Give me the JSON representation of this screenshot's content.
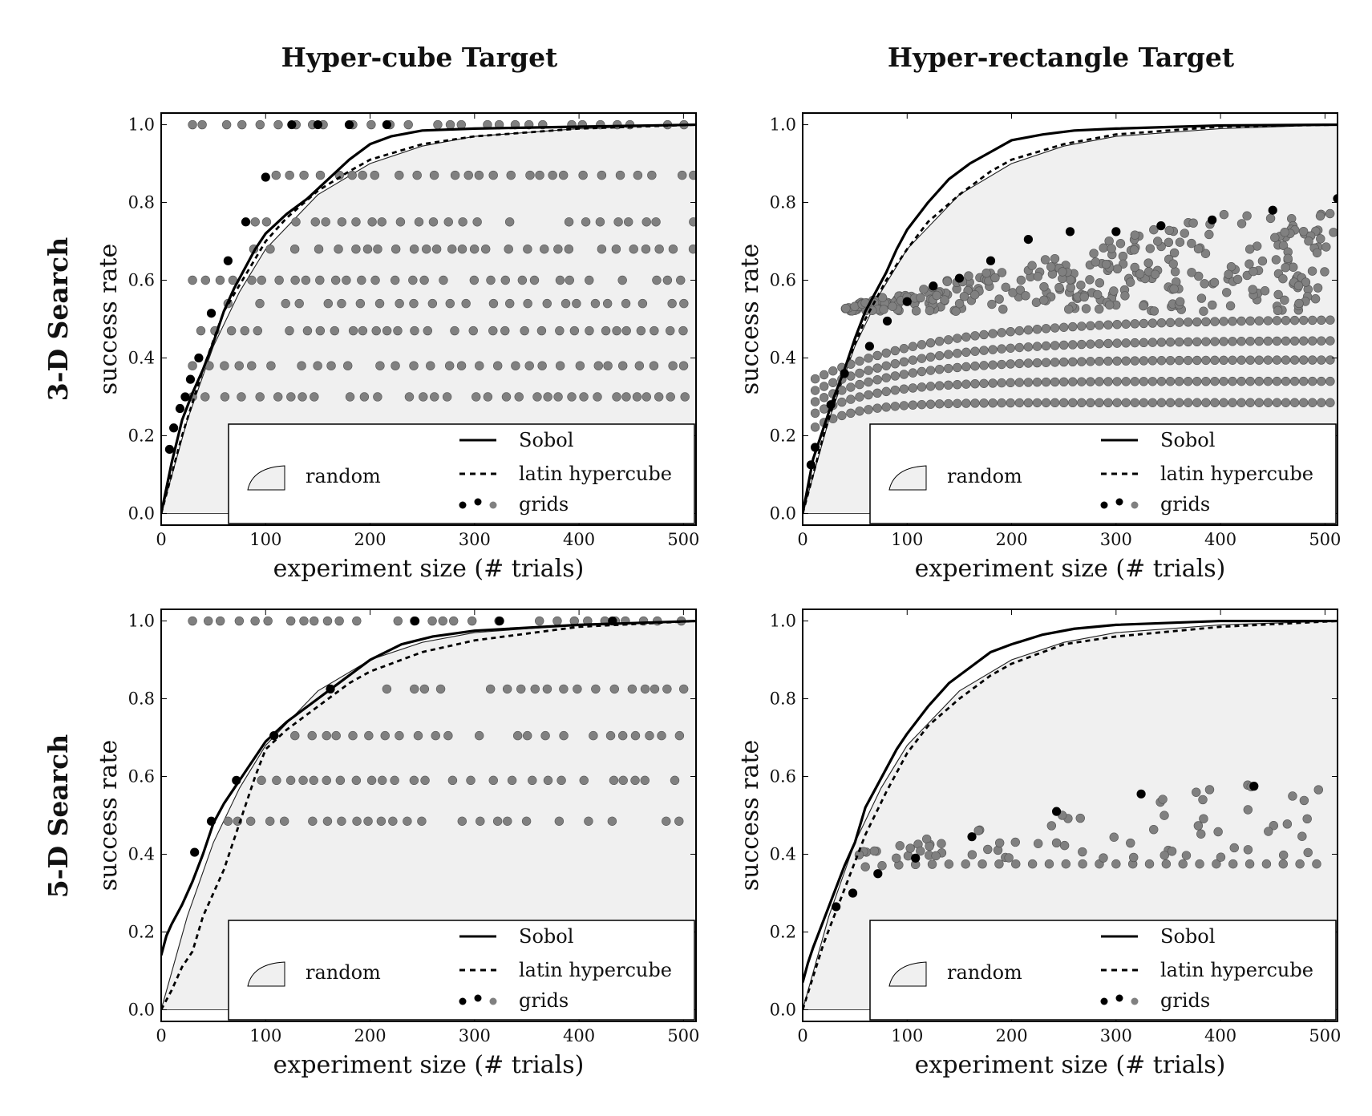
{
  "figure": {
    "col_titles": [
      "Hyper-cube Target",
      "Hyper-rectangle Target"
    ],
    "row_titles": [
      "3-D Search",
      "5-D Search"
    ]
  },
  "colors": {
    "random_fill": "#f0f0f0",
    "black_dot": "#000000",
    "gray_dot": "#808080",
    "line": "#000000"
  },
  "legend": {
    "random": "random",
    "sobol": "Sobol",
    "latin": "latin hypercube",
    "grids": "grids"
  },
  "chart_data": [
    {
      "type": "line",
      "panel": "3-D Search / Hyper-cube Target",
      "xlabel": "experiment size (# trials)",
      "ylabel": "success rate",
      "xlim": [
        0,
        512
      ],
      "ylim": [
        -0.03,
        1.03
      ],
      "xticks": [
        "0",
        "100",
        "200",
        "300",
        "400",
        "500"
      ],
      "yticks": [
        "0.0",
        "0.2",
        "0.4",
        "0.6",
        "0.8",
        "1.0"
      ],
      "series": [
        {
          "name": "random",
          "x": [
            0,
            25,
            50,
            75,
            100,
            150,
            200,
            250,
            300,
            400,
            512
          ],
          "values": [
            0,
            0.24,
            0.43,
            0.57,
            0.68,
            0.82,
            0.9,
            0.945,
            0.97,
            0.99,
            1.0
          ]
        },
        {
          "name": "Sobol",
          "x": [
            0,
            10,
            20,
            30,
            40,
            50,
            60,
            70,
            80,
            90,
            100,
            120,
            140,
            160,
            180,
            200,
            220,
            250,
            300,
            400,
            512
          ],
          "values": [
            0,
            0.13,
            0.24,
            0.31,
            0.37,
            0.44,
            0.52,
            0.58,
            0.63,
            0.68,
            0.72,
            0.77,
            0.81,
            0.86,
            0.91,
            0.95,
            0.97,
            0.985,
            0.99,
            0.995,
            1.0
          ]
        },
        {
          "name": "latin hypercube",
          "x": [
            0,
            20,
            40,
            60,
            80,
            100,
            120,
            150,
            180,
            200,
            250,
            300,
            400,
            512
          ],
          "values": [
            0,
            0.2,
            0.37,
            0.52,
            0.61,
            0.7,
            0.76,
            0.83,
            0.88,
            0.91,
            0.95,
            0.97,
            0.99,
            1.0
          ]
        }
      ],
      "grid_levels": [
        0.3,
        0.38,
        0.47,
        0.54,
        0.6,
        0.68,
        0.75,
        0.87,
        1.0
      ],
      "grid_best": {
        "x": [
          8,
          12,
          18,
          23,
          28,
          36,
          48,
          64,
          81,
          100,
          125,
          150,
          180,
          216
        ],
        "values": [
          0.165,
          0.22,
          0.27,
          0.3,
          0.345,
          0.4,
          0.515,
          0.65,
          0.75,
          0.865,
          1.0,
          1.0,
          1.0,
          1.0
        ]
      },
      "grid_min_x": {
        "0.30": 24,
        "0.38": 30,
        "0.47": 38,
        "0.54": 64,
        "0.60": 60,
        "0.68": 75,
        "0.75": 90,
        "0.87": 110,
        "1.0": 180
      }
    },
    {
      "type": "line",
      "panel": "3-D Search / Hyper-rectangle Target",
      "xlabel": "experiment size (# trials)",
      "ylabel": "success rate",
      "xlim": [
        0,
        512
      ],
      "ylim": [
        -0.03,
        1.03
      ],
      "xticks": [
        "0",
        "100",
        "200",
        "300",
        "400",
        "500"
      ],
      "yticks": [
        "0.0",
        "0.2",
        "0.4",
        "0.6",
        "0.8",
        "1.0"
      ],
      "series": [
        {
          "name": "random",
          "x": [
            0,
            25,
            50,
            75,
            100,
            150,
            200,
            250,
            300,
            400,
            512
          ],
          "values": [
            0,
            0.24,
            0.43,
            0.57,
            0.68,
            0.82,
            0.9,
            0.945,
            0.97,
            0.99,
            1.0
          ]
        },
        {
          "name": "Sobol",
          "x": [
            0,
            10,
            20,
            30,
            40,
            50,
            60,
            70,
            80,
            90,
            100,
            120,
            140,
            160,
            180,
            200,
            230,
            260,
            300,
            400,
            512
          ],
          "values": [
            0,
            0.14,
            0.22,
            0.3,
            0.37,
            0.45,
            0.52,
            0.57,
            0.62,
            0.68,
            0.73,
            0.8,
            0.86,
            0.9,
            0.93,
            0.96,
            0.975,
            0.985,
            0.99,
            0.998,
            1.0
          ]
        },
        {
          "name": "latin hypercube",
          "x": [
            0,
            20,
            40,
            60,
            80,
            100,
            120,
            150,
            180,
            200,
            250,
            300,
            400,
            512
          ],
          "values": [
            0,
            0.2,
            0.37,
            0.5,
            0.6,
            0.68,
            0.75,
            0.82,
            0.88,
            0.91,
            0.95,
            0.975,
            0.995,
            1.0
          ]
        }
      ],
      "grid_bands": [
        {
          "base": 0.285,
          "start": 0.2,
          "rate": 40
        },
        {
          "base": 0.34,
          "start": 0.24,
          "rate": 60
        },
        {
          "base": 0.395,
          "start": 0.27,
          "rate": 80
        },
        {
          "base": 0.445,
          "start": 0.3,
          "rate": 100
        },
        {
          "base": 0.5,
          "start": 0.33,
          "rate": 120
        }
      ],
      "grid_scatter_range": [
        0.52,
        0.78
      ],
      "grid_best": {
        "x": [
          8,
          12,
          27,
          40,
          64,
          81,
          100,
          125,
          150,
          180,
          216,
          256,
          300,
          343,
          392,
          450,
          512
        ],
        "values": [
          0.125,
          0.17,
          0.28,
          0.36,
          0.43,
          0.495,
          0.545,
          0.585,
          0.605,
          0.65,
          0.705,
          0.725,
          0.725,
          0.74,
          0.755,
          0.78,
          0.81
        ]
      }
    },
    {
      "type": "line",
      "panel": "5-D Search / Hyper-cube Target",
      "xlabel": "experiment size (# trials)",
      "ylabel": "success rate",
      "xlim": [
        0,
        512
      ],
      "ylim": [
        -0.03,
        1.03
      ],
      "xticks": [
        "0",
        "100",
        "200",
        "300",
        "400",
        "500"
      ],
      "yticks": [
        "0.0",
        "0.2",
        "0.4",
        "0.6",
        "0.8",
        "1.0"
      ],
      "series": [
        {
          "name": "random",
          "x": [
            0,
            25,
            50,
            75,
            100,
            150,
            200,
            250,
            300,
            400,
            512
          ],
          "values": [
            0,
            0.24,
            0.43,
            0.57,
            0.68,
            0.82,
            0.9,
            0.945,
            0.97,
            0.99,
            1.0
          ]
        },
        {
          "name": "Sobol",
          "x": [
            0,
            5,
            10,
            20,
            30,
            40,
            50,
            60,
            70,
            80,
            90,
            100,
            120,
            140,
            160,
            180,
            200,
            230,
            260,
            300,
            400,
            512
          ],
          "values": [
            0.14,
            0.19,
            0.22,
            0.27,
            0.33,
            0.4,
            0.48,
            0.53,
            0.57,
            0.61,
            0.65,
            0.69,
            0.74,
            0.78,
            0.82,
            0.86,
            0.9,
            0.94,
            0.96,
            0.975,
            0.99,
            1.0
          ]
        },
        {
          "name": "latin hypercube",
          "x": [
            0,
            10,
            20,
            30,
            40,
            50,
            60,
            70,
            80,
            90,
            100,
            120,
            150,
            180,
            200,
            250,
            300,
            400,
            512
          ],
          "values": [
            0,
            0.05,
            0.11,
            0.15,
            0.24,
            0.3,
            0.36,
            0.44,
            0.52,
            0.6,
            0.67,
            0.72,
            0.78,
            0.84,
            0.87,
            0.92,
            0.95,
            0.985,
            1.0
          ]
        }
      ],
      "grid_levels": [
        0.485,
        0.59,
        0.705,
        0.825,
        1.0
      ],
      "grid_best": {
        "x": [
          32,
          48,
          72,
          108,
          162,
          243,
          324,
          432
        ],
        "values": [
          0.405,
          0.485,
          0.59,
          0.705,
          0.825,
          1.0,
          1.0,
          1.0
        ]
      },
      "grid_min_x": {
        "0.485": 64,
        "0.59": 96,
        "0.705": 128,
        "0.825": 216,
        "1.0": 400
      }
    },
    {
      "type": "line",
      "panel": "5-D Search / Hyper-rectangle Target",
      "xlabel": "experiment size (# trials)",
      "ylabel": "success rate",
      "xlim": [
        0,
        512
      ],
      "ylim": [
        -0.03,
        1.03
      ],
      "xticks": [
        "0",
        "100",
        "200",
        "300",
        "400",
        "500"
      ],
      "yticks": [
        "0.0",
        "0.2",
        "0.4",
        "0.6",
        "0.8",
        "1.0"
      ],
      "series": [
        {
          "name": "random",
          "x": [
            0,
            25,
            50,
            75,
            100,
            150,
            200,
            250,
            300,
            400,
            512
          ],
          "values": [
            0,
            0.24,
            0.43,
            0.57,
            0.68,
            0.82,
            0.9,
            0.945,
            0.97,
            0.99,
            1.0
          ]
        },
        {
          "name": "Sobol",
          "x": [
            0,
            5,
            10,
            20,
            30,
            40,
            50,
            60,
            70,
            80,
            90,
            100,
            120,
            140,
            160,
            180,
            200,
            230,
            260,
            300,
            400,
            512
          ],
          "values": [
            0.07,
            0.12,
            0.16,
            0.23,
            0.3,
            0.37,
            0.43,
            0.52,
            0.57,
            0.62,
            0.67,
            0.71,
            0.78,
            0.84,
            0.88,
            0.92,
            0.94,
            0.965,
            0.98,
            0.99,
            1.0,
            1.0
          ]
        },
        {
          "name": "latin hypercube",
          "x": [
            0,
            20,
            40,
            60,
            80,
            100,
            120,
            150,
            180,
            200,
            250,
            300,
            400,
            512
          ],
          "values": [
            0,
            0.17,
            0.31,
            0.45,
            0.56,
            0.66,
            0.73,
            0.8,
            0.86,
            0.89,
            0.94,
            0.96,
            0.985,
            1.0
          ]
        }
      ],
      "grid_baseline": {
        "base": 0.375,
        "start": 0.32,
        "rate": 30
      },
      "grid_scatter_range": [
        0.39,
        0.58
      ],
      "grid_best": {
        "x": [
          32,
          48,
          72,
          108,
          162,
          243,
          324,
          432
        ],
        "values": [
          0.265,
          0.3,
          0.35,
          0.39,
          0.445,
          0.51,
          0.555,
          0.575
        ]
      }
    }
  ]
}
